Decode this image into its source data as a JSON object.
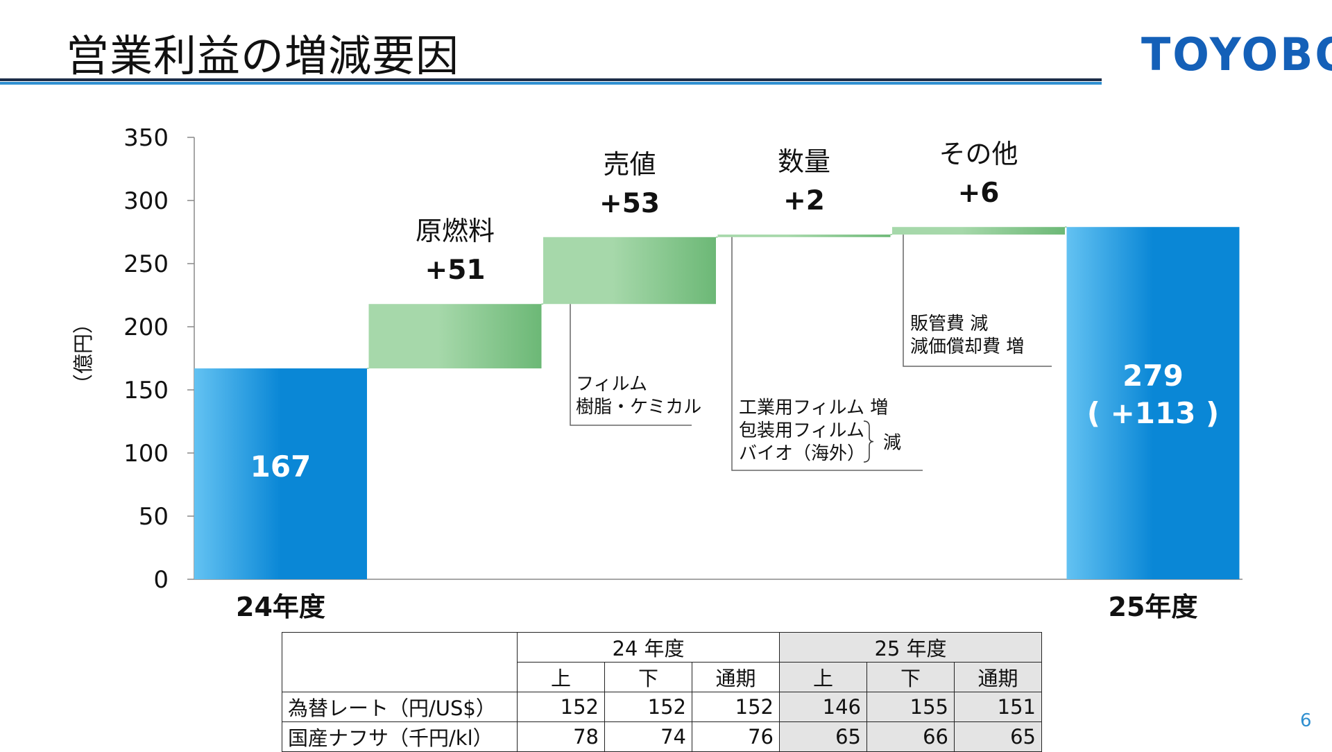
{
  "slide": {
    "title": "営業利益の増減要因",
    "logo": "TOYOBO",
    "page_number": "6"
  },
  "chart_data": {
    "type": "waterfall",
    "ylabel": "（億円）",
    "ylim": [
      0,
      350
    ],
    "y_ticks": [
      "0",
      "50",
      "100",
      "150",
      "200",
      "250",
      "300",
      "350"
    ],
    "steps": [
      {
        "category": "24年度",
        "kind": "total",
        "value": 167,
        "label": "167"
      },
      {
        "category": "原燃料",
        "kind": "delta",
        "value": 51,
        "label": "+51",
        "note": []
      },
      {
        "category": "売値",
        "kind": "delta",
        "value": 53,
        "label": "+53",
        "note": [
          "フィルム",
          "樹脂・ケミカル"
        ]
      },
      {
        "category": "数量",
        "kind": "delta",
        "value": 2,
        "label": "+2",
        "note": [
          "工業用フィルム 増",
          "包装用フィルム",
          "バイオ（海外）"
        ],
        "note_bracket": "減"
      },
      {
        "category": "その他",
        "kind": "delta",
        "value": 6,
        "label": "+6",
        "note": [
          "販管費 減",
          "減価償却費 増"
        ]
      },
      {
        "category": "25年度",
        "kind": "total",
        "value": 279,
        "label": "279",
        "sublabel": "( +113 )"
      }
    ],
    "colors": {
      "total": "#0a87d6",
      "total_light": "#63c2f2",
      "delta": "#6cb876",
      "delta_light": "#a6d8aa"
    }
  },
  "fx_table": {
    "groups": [
      "24 年度",
      "25 年度"
    ],
    "subheaders": [
      "上",
      "下",
      "通期",
      "上",
      "下",
      "通期"
    ],
    "rows": [
      {
        "label": "為替レート（円/US$）",
        "values": [
          "152",
          "152",
          "152",
          "146",
          "155",
          "151"
        ]
      },
      {
        "label": "国産ナフサ（千円/kl）",
        "values": [
          "78",
          "74",
          "76",
          "65",
          "66",
          "65"
        ]
      }
    ]
  }
}
